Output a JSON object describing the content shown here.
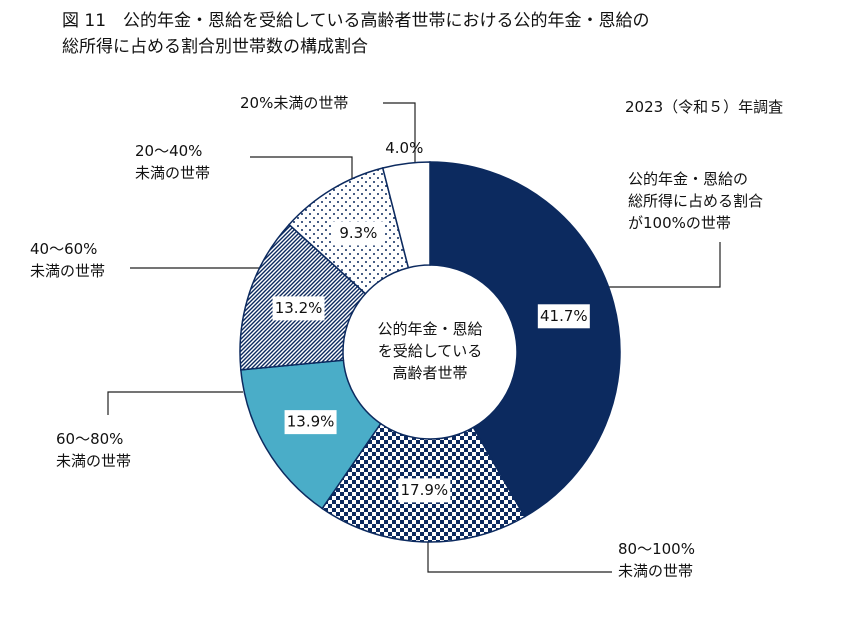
{
  "chart_data": {
    "type": "donut",
    "title": "図 11　公的年金・恩給を受給している高齢者世帯における公的年金・恩給の\n総所得に占める割合別世帯数の構成割合",
    "subtitle": "2023（令和５）年調査",
    "center_label": "公的年金・恩給\nを受給している\n高齢者世帯",
    "categories": [
      "公的年金・恩給の\n総所得に占める割合\nが100%の世帯",
      "80～100%\n未満の世帯",
      "60～80%\n未満の世帯",
      "40～60%\n未満の世帯",
      "20～40%\n未満の世帯",
      "20%未満の世帯"
    ],
    "values": [
      41.7,
      17.9,
      13.9,
      13.2,
      9.3,
      4.0
    ],
    "value_labels": [
      "41.7%",
      "17.9%",
      "13.9%",
      "13.2%",
      "9.3%",
      "4.0%"
    ],
    "colors": [
      "#0c2a5f",
      "#0c2a5f",
      "#4aadc8",
      "#0c2a5f",
      "#0c2a5f",
      "#ffffff"
    ]
  }
}
